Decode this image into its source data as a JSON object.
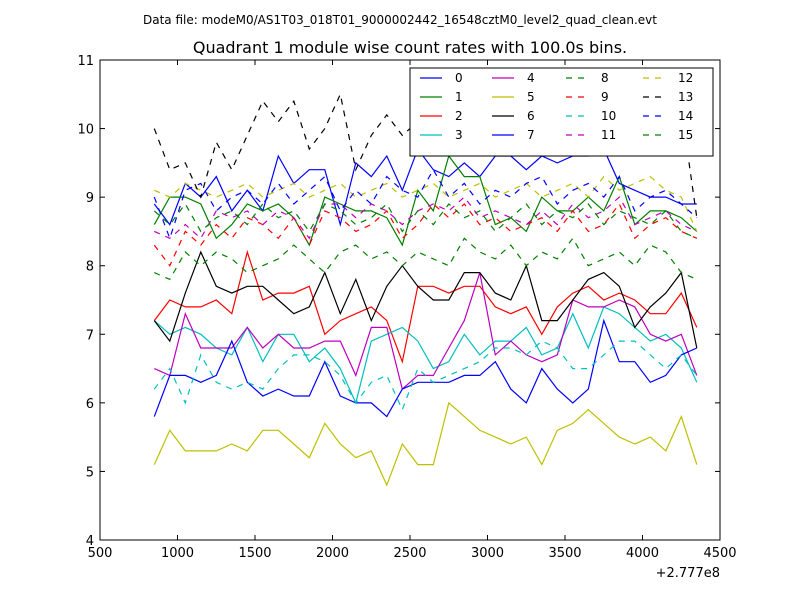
{
  "figure": {
    "suptitle": "Data file: modeM0/AS1T03_018T01_9000002442_16548cztM0_level2_quad_clean.evt"
  },
  "chart_data": {
    "type": "line",
    "title": "Quadrant 1 module wise count rates with 100.0s bins.",
    "xlabel": "",
    "ylabel": "",
    "x_offset_label": "+2.777e8",
    "xlim": [
      500,
      4500
    ],
    "ylim": [
      4,
      11
    ],
    "xticks": [
      500,
      1000,
      1500,
      2000,
      2500,
      3000,
      3500,
      4000,
      4500
    ],
    "yticks": [
      4,
      5,
      6,
      7,
      8,
      9,
      10,
      11
    ],
    "grid": false,
    "legend": {
      "position": "top-right",
      "columns": 4
    },
    "x": [
      850,
      950,
      1050,
      1150,
      1250,
      1350,
      1450,
      1550,
      1650,
      1750,
      1850,
      1950,
      2050,
      2150,
      2250,
      2350,
      2450,
      2550,
      2650,
      2750,
      2850,
      2950,
      3050,
      3150,
      3250,
      3350,
      3450,
      3550,
      3650,
      3750,
      3850,
      3950,
      4050,
      4150,
      4250,
      4350
    ],
    "series": [
      {
        "name": "0",
        "color": "#0000ff",
        "dash": false,
        "values": [
          8.9,
          8.6,
          9.2,
          9.0,
          9.3,
          8.8,
          9.1,
          8.8,
          9.6,
          9.2,
          9.4,
          9.4,
          8.6,
          9.5,
          9.3,
          9.6,
          9.1,
          9.7,
          9.4,
          9.3,
          9.5,
          9.3,
          9.6,
          9.6,
          9.4,
          9.6,
          9.5,
          9.6,
          9.6,
          9.7,
          9.2,
          9.1,
          9.0,
          9.0,
          8.9,
          8.9
        ]
      },
      {
        "name": "1",
        "color": "#008000",
        "dash": false,
        "values": [
          8.6,
          9.0,
          9.0,
          8.9,
          8.4,
          8.6,
          8.9,
          8.8,
          8.9,
          8.7,
          8.3,
          9.0,
          8.9,
          8.8,
          8.8,
          8.7,
          8.3,
          9.1,
          8.8,
          9.6,
          9.3,
          9.3,
          8.6,
          8.7,
          8.5,
          9.0,
          8.8,
          8.8,
          9.0,
          8.8,
          9.3,
          8.6,
          8.8,
          8.8,
          8.7,
          8.5
        ]
      },
      {
        "name": "2",
        "color": "#ff0000",
        "dash": false,
        "values": [
          7.2,
          7.5,
          7.4,
          7.4,
          7.5,
          7.3,
          8.2,
          7.5,
          7.6,
          7.6,
          7.7,
          7.0,
          7.2,
          7.3,
          7.4,
          7.2,
          6.6,
          7.7,
          7.7,
          7.6,
          7.7,
          7.7,
          7.4,
          7.3,
          7.4,
          7.0,
          7.4,
          7.6,
          7.7,
          7.5,
          7.6,
          7.5,
          7.3,
          7.3,
          7.6,
          7.1
        ]
      },
      {
        "name": "3",
        "color": "#00bfbf",
        "dash": false,
        "values": [
          7.2,
          7.0,
          7.1,
          7.0,
          6.8,
          6.7,
          7.1,
          6.6,
          7.0,
          7.0,
          6.6,
          6.8,
          6.5,
          6.0,
          6.9,
          7.0,
          7.1,
          6.9,
          6.5,
          6.6,
          7.0,
          6.7,
          6.9,
          6.9,
          7.1,
          6.7,
          6.8,
          7.3,
          6.8,
          7.4,
          7.3,
          7.1,
          6.9,
          7.0,
          6.8,
          6.3
        ]
      },
      {
        "name": "4",
        "color": "#bf00bf",
        "dash": false,
        "values": [
          6.5,
          6.4,
          7.3,
          6.8,
          6.8,
          6.8,
          7.1,
          6.8,
          7.0,
          6.8,
          6.8,
          6.9,
          6.9,
          6.4,
          7.1,
          7.1,
          6.2,
          6.4,
          6.4,
          6.8,
          7.2,
          7.9,
          6.7,
          6.9,
          6.7,
          6.6,
          6.7,
          7.5,
          7.4,
          7.4,
          7.5,
          7.4,
          7.0,
          6.9,
          7.0,
          6.4
        ]
      },
      {
        "name": "5",
        "color": "#bfbf00",
        "dash": false,
        "values": [
          5.1,
          5.6,
          5.3,
          5.3,
          5.3,
          5.4,
          5.3,
          5.6,
          5.6,
          5.4,
          5.2,
          5.7,
          5.4,
          5.2,
          5.3,
          4.8,
          5.4,
          5.1,
          5.1,
          6.0,
          5.8,
          5.6,
          5.5,
          5.4,
          5.5,
          5.1,
          5.6,
          5.7,
          5.9,
          5.7,
          5.5,
          5.4,
          5.5,
          5.3,
          5.8,
          5.1
        ]
      },
      {
        "name": "6",
        "color": "#000000",
        "dash": false,
        "values": [
          7.2,
          6.9,
          7.6,
          8.2,
          7.7,
          7.6,
          7.7,
          7.7,
          7.5,
          7.3,
          7.4,
          7.9,
          7.3,
          7.8,
          7.2,
          7.7,
          8.0,
          7.7,
          7.5,
          7.5,
          7.9,
          7.9,
          7.6,
          7.5,
          8.0,
          7.2,
          7.2,
          7.5,
          7.8,
          7.9,
          7.7,
          7.1,
          7.4,
          7.6,
          7.9,
          6.8
        ]
      },
      {
        "name": "7",
        "color": "#0000ff",
        "dash": false,
        "values": [
          5.8,
          6.4,
          6.4,
          6.3,
          6.4,
          6.9,
          6.3,
          6.1,
          6.2,
          6.1,
          6.1,
          6.6,
          6.1,
          6.0,
          6.0,
          5.8,
          6.2,
          6.3,
          6.3,
          6.3,
          6.4,
          6.4,
          6.6,
          6.2,
          6.0,
          6.5,
          6.2,
          6.0,
          6.2,
          7.2,
          6.6,
          6.6,
          6.3,
          6.4,
          6.7,
          6.8
        ]
      },
      {
        "name": "8",
        "color": "#008000",
        "dash": true,
        "values": [
          7.9,
          7.8,
          8.2,
          8.0,
          8.2,
          8.1,
          7.9,
          8.0,
          8.1,
          8.3,
          8.1,
          7.9,
          8.2,
          8.3,
          8.1,
          8.2,
          8.0,
          8.2,
          8.1,
          8.0,
          8.4,
          8.2,
          8.1,
          8.3,
          8.0,
          8.2,
          8.1,
          8.4,
          8.0,
          8.1,
          8.2,
          8.0,
          8.3,
          8.2,
          7.9,
          7.8
        ]
      },
      {
        "name": "9",
        "color": "#ff0000",
        "dash": true,
        "values": [
          8.3,
          8.0,
          8.5,
          8.3,
          8.6,
          8.4,
          8.7,
          8.6,
          8.4,
          8.7,
          8.3,
          8.8,
          8.7,
          8.5,
          8.6,
          8.8,
          8.4,
          8.6,
          8.9,
          8.7,
          8.9,
          8.6,
          8.7,
          8.5,
          8.6,
          8.7,
          8.5,
          8.8,
          8.5,
          8.6,
          8.9,
          8.4,
          8.6,
          8.7,
          8.5,
          8.4
        ]
      },
      {
        "name": "10",
        "color": "#00bfbf",
        "dash": true,
        "values": [
          6.2,
          6.5,
          6.0,
          6.7,
          6.3,
          6.2,
          6.3,
          6.2,
          6.5,
          6.7,
          6.7,
          6.6,
          6.4,
          6.0,
          6.3,
          6.4,
          5.9,
          6.5,
          6.3,
          6.4,
          6.5,
          6.6,
          6.8,
          6.8,
          6.7,
          6.9,
          6.8,
          6.5,
          6.5,
          6.7,
          6.9,
          6.9,
          6.7,
          6.5,
          6.7,
          6.4
        ]
      },
      {
        "name": "11",
        "color": "#bf00bf",
        "dash": true,
        "values": [
          8.5,
          8.4,
          8.6,
          8.4,
          8.8,
          8.7,
          8.8,
          8.6,
          8.8,
          8.7,
          8.4,
          8.9,
          8.9,
          8.7,
          8.9,
          8.8,
          8.6,
          8.8,
          8.9,
          8.8,
          9.0,
          8.7,
          8.8,
          8.7,
          8.6,
          8.8,
          8.6,
          8.9,
          8.7,
          8.8,
          9.0,
          8.6,
          8.7,
          8.8,
          8.6,
          8.5
        ]
      },
      {
        "name": "12",
        "color": "#bfbf00",
        "dash": true,
        "values": [
          9.1,
          9.0,
          9.2,
          9.1,
          9.0,
          9.1,
          9.2,
          9.0,
          9.1,
          9.2,
          9.0,
          9.1,
          9.2,
          9.0,
          9.1,
          9.2,
          9.0,
          9.1,
          9.2,
          9.0,
          9.1,
          9.2,
          9.0,
          9.1,
          9.2,
          9.0,
          9.1,
          9.2,
          9.0,
          9.3,
          9.1,
          9.2,
          9.3,
          9.1,
          9.0,
          8.5
        ]
      },
      {
        "name": "13",
        "color": "#000000",
        "dash": true,
        "values": [
          10.0,
          9.4,
          9.5,
          9.0,
          9.8,
          9.4,
          9.9,
          10.4,
          10.1,
          10.4,
          9.7,
          10.0,
          10.5,
          9.4,
          9.9,
          10.2,
          9.9,
          10.1,
          9.9,
          10.0,
          10.2,
          9.8,
          10.1,
          10.1,
          10.3,
          10.5,
          10.5,
          10.2,
          10.4,
          10.5,
          10.2,
          10.0,
          10.1,
          10.3,
          10.3,
          8.7
        ]
      },
      {
        "name": "14",
        "color": "#0000ff",
        "dash": true,
        "values": [
          9.0,
          8.4,
          9.1,
          9.2,
          8.8,
          9.0,
          9.1,
          8.9,
          9.2,
          8.9,
          9.1,
          9.3,
          8.8,
          9.1,
          8.9,
          9.3,
          9.1,
          9.0,
          9.4,
          9.0,
          9.2,
          8.9,
          9.1,
          9.0,
          9.2,
          9.3,
          8.9,
          9.1,
          9.2,
          9.0,
          9.3,
          8.8,
          9.0,
          9.1,
          8.9,
          8.7
        ]
      },
      {
        "name": "15",
        "color": "#008000",
        "dash": true,
        "values": [
          8.8,
          8.6,
          8.9,
          8.5,
          8.7,
          8.8,
          8.6,
          8.9,
          8.7,
          8.8,
          8.5,
          8.9,
          8.8,
          8.6,
          8.7,
          8.9,
          8.5,
          8.8,
          8.6,
          8.9,
          8.7,
          8.8,
          8.5,
          8.7,
          8.9,
          8.6,
          8.8,
          8.7,
          8.9,
          8.6,
          8.8,
          8.7,
          8.6,
          8.8,
          8.5,
          8.4
        ]
      }
    ]
  }
}
